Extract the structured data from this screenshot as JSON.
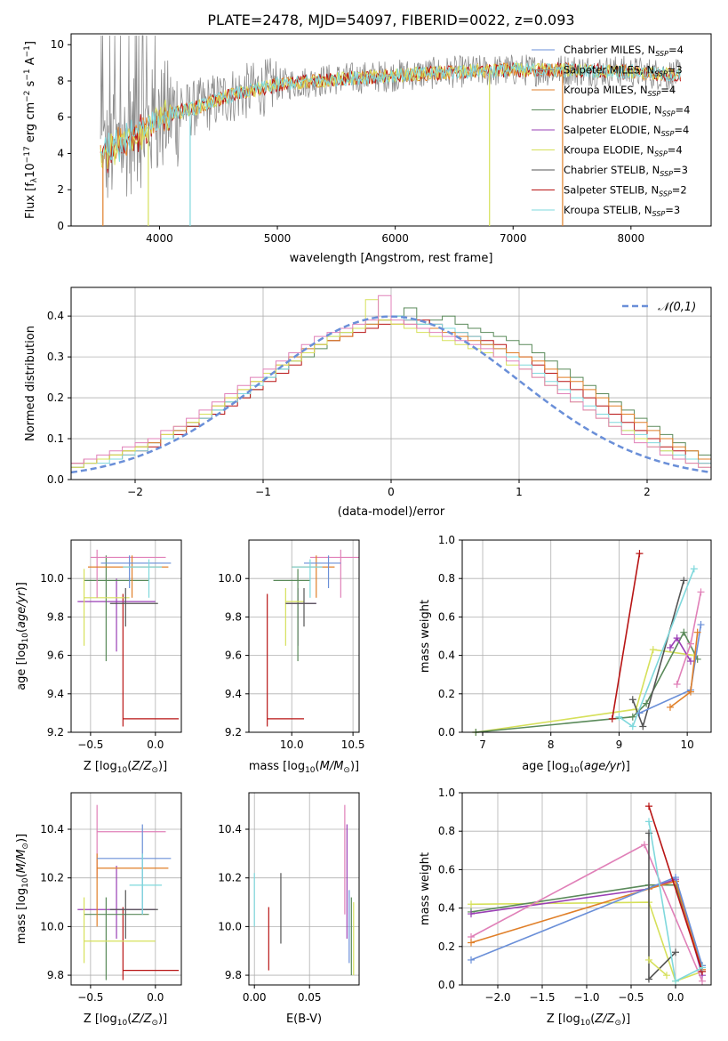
{
  "figure": {
    "title": "PLATE=2478, MJD=54097, FIBERID=0022, z=0.093"
  },
  "colors": {
    "chabrier_miles": "#6a8fd8",
    "salpeter_miles": "#8c8c8c",
    "kroupa_miles": "#e07f28",
    "chabrier_elodie": "#5a8a5a",
    "salpeter_elodie": "#9a3fb5",
    "kroupa_elodie": "#d6e05a",
    "chabrier_stelib": "#555555",
    "salpeter_stelib": "#b81414",
    "kroupa_stelib": "#7fd8dc",
    "pink": "#e080b8",
    "normal": "#6a8fd8"
  },
  "chart_data": [
    {
      "panel": "spectrum",
      "type": "line",
      "title": "PLATE=2478, MJD=54097, FIBERID=0022, z=0.093",
      "xlabel": "wavelength [Angstrom, rest frame]",
      "ylabel": "Flux [f_λ10^-17 erg cm^-2 s^-1 A^-1]",
      "xlim": [
        3250,
        8680
      ],
      "ylim": [
        0,
        10.6
      ],
      "xticks": [
        "4000",
        "5000",
        "6000",
        "7000",
        "8000"
      ],
      "yticks": [
        "0",
        "2",
        "4",
        "6",
        "8",
        "10"
      ],
      "legend_position": "right",
      "legend": [
        "Chabrier MILES, N_SSP=4",
        "Salpeter MILES, N_SSP=3",
        "Kroupa MILES, N_SSP=4",
        "Chabrier ELODIE, N_SSP=4",
        "Salpeter ELODIE, N_SSP=4",
        "Kroupa ELODIE, N_SSP=4",
        "Chabrier STELIB, N_SSP=3",
        "Salpeter STELIB, N_SSP=2",
        "Kroupa STELIB, N_SSP=3"
      ],
      "continuum": {
        "x": [
          3500,
          3700,
          3900,
          4100,
          4300,
          4600,
          5000,
          5500,
          6000,
          6500,
          7000,
          7500,
          8000,
          8400
        ],
        "y": [
          3.8,
          4.6,
          5.5,
          6.2,
          6.5,
          7.2,
          7.8,
          8.1,
          8.3,
          8.5,
          8.6,
          8.6,
          8.5,
          8.3
        ]
      }
    },
    {
      "panel": "residual-histogram",
      "type": "bar",
      "xlabel": "(data-model)/error",
      "ylabel": "Normed distribution",
      "xlim": [
        -2.5,
        2.5
      ],
      "ylim": [
        0,
        0.47
      ],
      "xticks": [
        "−2",
        "−1",
        "0",
        "1",
        "2"
      ],
      "yticks": [
        "0.0",
        "0.1",
        "0.2",
        "0.3",
        "0.4"
      ],
      "grid": true,
      "legend": [
        "𝒩(0,1)"
      ],
      "legend_position": "upper right",
      "bin_width": 0.1,
      "series": [
        {
          "color": "chabrier_elodie",
          "values": [
            0.04,
            0.05,
            0.05,
            0.06,
            0.07,
            0.08,
            0.09,
            0.1,
            0.12,
            0.13,
            0.15,
            0.17,
            0.19,
            0.2,
            0.22,
            0.25,
            0.27,
            0.29,
            0.3,
            0.32,
            0.34,
            0.36,
            0.37,
            0.38,
            0.39,
            0.4,
            0.42,
            0.38,
            0.39,
            0.4,
            0.38,
            0.37,
            0.36,
            0.35,
            0.34,
            0.33,
            0.31,
            0.29,
            0.27,
            0.25,
            0.23,
            0.21,
            0.19,
            0.17,
            0.15,
            0.13,
            0.11,
            0.09,
            0.07,
            0.06
          ]
        },
        {
          "color": "salpeter_stelib",
          "values": [
            0.03,
            0.04,
            0.05,
            0.05,
            0.06,
            0.07,
            0.08,
            0.1,
            0.11,
            0.13,
            0.15,
            0.16,
            0.18,
            0.2,
            0.22,
            0.24,
            0.26,
            0.28,
            0.31,
            0.33,
            0.34,
            0.35,
            0.36,
            0.37,
            0.38,
            0.38,
            0.39,
            0.39,
            0.38,
            0.37,
            0.36,
            0.35,
            0.34,
            0.33,
            0.31,
            0.3,
            0.28,
            0.26,
            0.24,
            0.22,
            0.2,
            0.18,
            0.16,
            0.14,
            0.12,
            0.1,
            0.08,
            0.07,
            0.05,
            0.04
          ]
        },
        {
          "color": "kroupa_stelib",
          "values": [
            0.03,
            0.04,
            0.04,
            0.05,
            0.06,
            0.07,
            0.09,
            0.1,
            0.12,
            0.14,
            0.15,
            0.17,
            0.19,
            0.21,
            0.23,
            0.25,
            0.27,
            0.3,
            0.32,
            0.33,
            0.35,
            0.36,
            0.37,
            0.38,
            0.39,
            0.4,
            0.39,
            0.38,
            0.38,
            0.37,
            0.36,
            0.35,
            0.33,
            0.32,
            0.3,
            0.28,
            0.26,
            0.24,
            0.22,
            0.2,
            0.18,
            0.16,
            0.14,
            0.12,
            0.11,
            0.09,
            0.07,
            0.06,
            0.05,
            0.04
          ]
        },
        {
          "color": "kroupa_miles",
          "values": [
            0.04,
            0.05,
            0.05,
            0.06,
            0.07,
            0.08,
            0.09,
            0.11,
            0.12,
            0.14,
            0.16,
            0.18,
            0.2,
            0.22,
            0.24,
            0.26,
            0.28,
            0.3,
            0.32,
            0.33,
            0.34,
            0.35,
            0.37,
            0.38,
            0.39,
            0.38,
            0.38,
            0.37,
            0.37,
            0.36,
            0.35,
            0.34,
            0.33,
            0.32,
            0.31,
            0.3,
            0.29,
            0.27,
            0.25,
            0.24,
            0.22,
            0.2,
            0.18,
            0.16,
            0.14,
            0.12,
            0.1,
            0.08,
            0.07,
            0.05
          ]
        },
        {
          "color": "kroupa_elodie",
          "values": [
            0.03,
            0.04,
            0.05,
            0.06,
            0.07,
            0.08,
            0.1,
            0.11,
            0.13,
            0.14,
            0.16,
            0.18,
            0.2,
            0.22,
            0.24,
            0.26,
            0.28,
            0.29,
            0.31,
            0.33,
            0.35,
            0.36,
            0.37,
            0.44,
            0.39,
            0.38,
            0.37,
            0.36,
            0.35,
            0.34,
            0.33,
            0.32,
            0.31,
            0.3,
            0.28,
            0.27,
            0.25,
            0.23,
            0.21,
            0.19,
            0.17,
            0.15,
            0.13,
            0.12,
            0.1,
            0.08,
            0.07,
            0.05,
            0.04,
            0.03
          ]
        },
        {
          "color": "pink",
          "values": [
            0.04,
            0.05,
            0.06,
            0.07,
            0.08,
            0.09,
            0.1,
            0.12,
            0.13,
            0.15,
            0.17,
            0.19,
            0.21,
            0.23,
            0.25,
            0.27,
            0.29,
            0.31,
            0.33,
            0.35,
            0.36,
            0.37,
            0.38,
            0.39,
            0.45,
            0.39,
            0.38,
            0.37,
            0.36,
            0.35,
            0.34,
            0.33,
            0.32,
            0.3,
            0.29,
            0.27,
            0.25,
            0.23,
            0.21,
            0.19,
            0.17,
            0.15,
            0.13,
            0.11,
            0.09,
            0.08,
            0.06,
            0.05,
            0.04,
            0.03
          ]
        }
      ],
      "normal_curve": {
        "mean": 0,
        "sigma": 1
      }
    },
    {
      "panel": "age-vs-Z",
      "type": "scatter",
      "xlabel": "Z [log10(Z/Z⊙)]",
      "ylabel": "age  [log10(age/yr)]",
      "xlim": [
        -0.65,
        0.2
      ],
      "ylim": [
        9.2,
        10.2
      ],
      "xticks": [
        "−0.5",
        "0.0"
      ],
      "yticks": [
        "9.2",
        "9.4",
        "9.6",
        "9.8",
        "10.0"
      ],
      "grid": true
    },
    {
      "panel": "age-vs-mass",
      "type": "scatter",
      "xlabel": "mass [log10(M/M⊙)]",
      "ylim": [
        9.2,
        10.2
      ],
      "xlim": [
        9.65,
        10.55
      ],
      "xticks": [
        "10.0",
        "10.5"
      ],
      "yticks": [
        "9.2",
        "9.4",
        "9.6",
        "9.8",
        "10.0"
      ],
      "grid": true
    },
    {
      "panel": "massweight-vs-age",
      "type": "line",
      "xlabel": "age  [log10(age/yr)]",
      "ylabel": "mass weight",
      "xlim": [
        6.7,
        10.35
      ],
      "ylim": [
        0,
        1.0
      ],
      "xticks": [
        "7",
        "8",
        "9",
        "10"
      ],
      "yticks": [
        "0.0",
        "0.2",
        "0.4",
        "0.6",
        "0.8",
        "1.0"
      ],
      "grid": true
    },
    {
      "panel": "mass-vs-Z",
      "type": "scatter",
      "xlabel": "Z [log10(Z/Z⊙)]",
      "ylabel": "mass [log10(M/M⊙)]",
      "xlim": [
        -0.65,
        0.2
      ],
      "ylim": [
        9.76,
        10.55
      ],
      "xticks": [
        "−0.5",
        "0.0"
      ],
      "yticks": [
        "9.8",
        "10.0",
        "10.2",
        "10.4"
      ],
      "grid": true
    },
    {
      "panel": "mass-vs-EBV",
      "type": "scatter",
      "xlabel": "E(B-V)",
      "xlim": [
        -0.005,
        0.095
      ],
      "ylim": [
        9.76,
        10.55
      ],
      "xticks": [
        "0.00",
        "0.05"
      ],
      "yticks": [
        "9.8",
        "10.0",
        "10.2",
        "10.4"
      ],
      "grid": true
    },
    {
      "panel": "massweight-vs-Z",
      "type": "line",
      "xlabel": "Z [log10(Z/Z⊙)]",
      "ylabel": "mass weight",
      "xlim": [
        -2.4,
        0.4
      ],
      "ylim": [
        0,
        1.0
      ],
      "xticks": [
        "−2.0",
        "−1.5",
        "−1.0",
        "−0.5",
        "0.0"
      ],
      "yticks": [
        "0.0",
        "0.2",
        "0.4",
        "0.6",
        "0.8",
        "1.0"
      ],
      "grid": true
    }
  ]
}
